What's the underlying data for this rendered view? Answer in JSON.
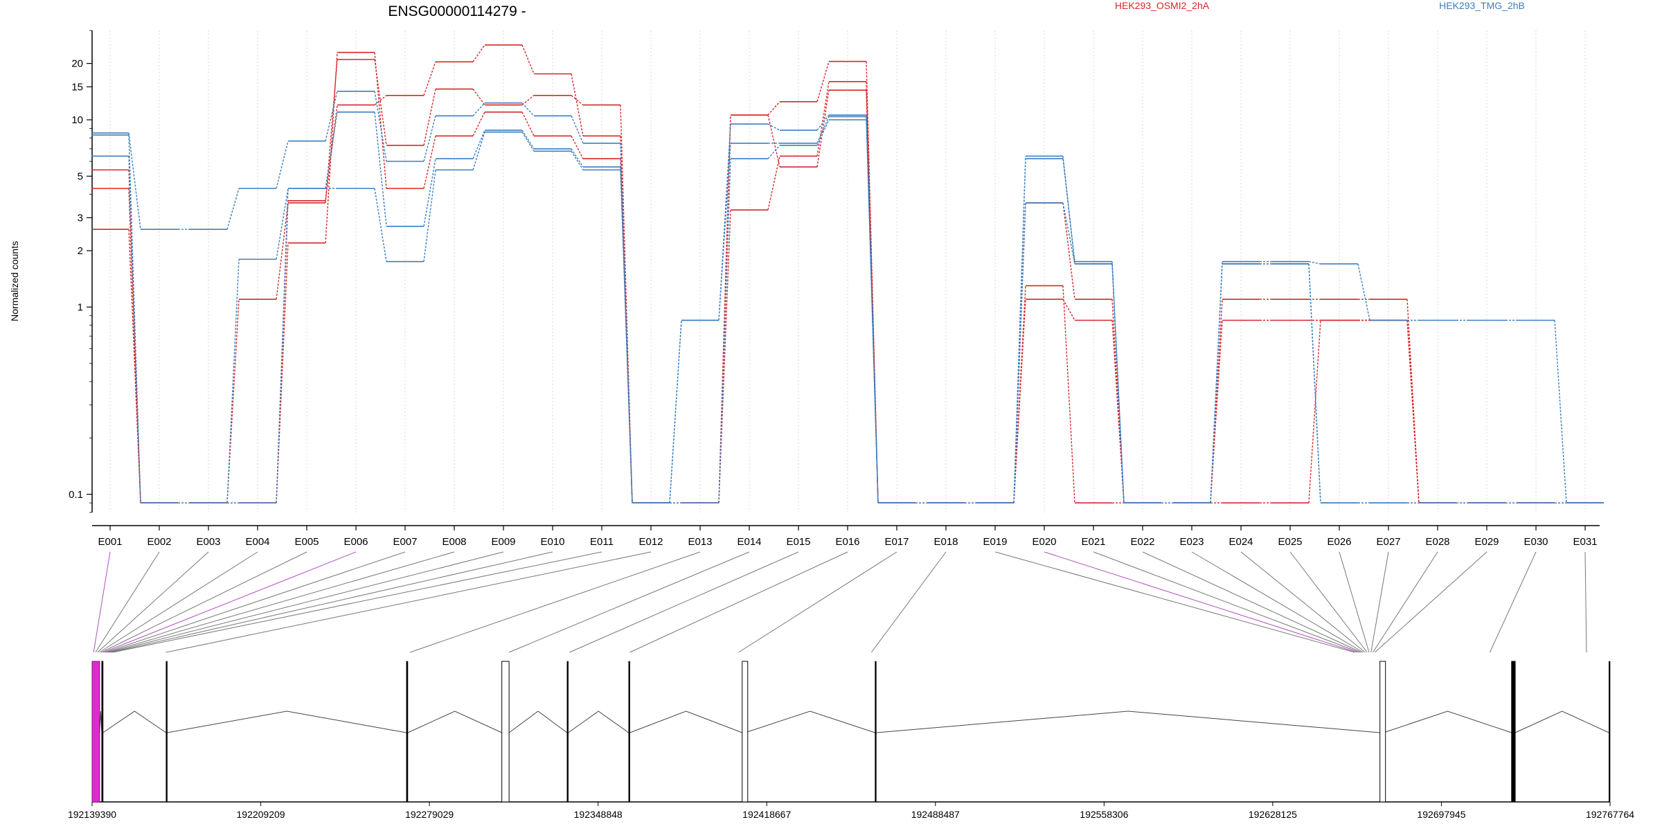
{
  "chart_data": {
    "type": "line",
    "title": "ENSG00000114279 -",
    "ylabel": "Normalized counts",
    "xlabel": "",
    "y_scale": "log",
    "ylim": [
      0.08,
      30
    ],
    "y_ticks": [
      {
        "value": 0.1,
        "label": "0.1"
      },
      {
        "value": 1,
        "label": "1"
      },
      {
        "value": 2,
        "label": "2"
      },
      {
        "value": 3,
        "label": "3"
      },
      {
        "value": 5,
        "label": "5"
      },
      {
        "value": 10,
        "label": "10"
      },
      {
        "value": 15,
        "label": "15"
      },
      {
        "value": 20,
        "label": "20"
      }
    ],
    "grid": "vertical dotted per exon",
    "categories": [
      "E001",
      "E002",
      "E003",
      "E004",
      "E005",
      "E006",
      "E007",
      "E008",
      "E009",
      "E010",
      "E011",
      "E012",
      "E013",
      "E014",
      "E015",
      "E016",
      "E017",
      "E018",
      "E019",
      "E020",
      "E021",
      "E022",
      "E023",
      "E024",
      "E025",
      "E026",
      "E027",
      "E028",
      "E029",
      "E030",
      "E031"
    ],
    "legend": [
      {
        "name": "HEK293_OSMI2_2hA",
        "color": "#d62728"
      },
      {
        "name": "HEK293_TMG_2hB",
        "color": "#3a7ebf"
      }
    ],
    "series": [
      {
        "group": "HEK293_OSMI2_2hA",
        "color": "#d62728",
        "values": [
          5.4,
          0.09,
          0.09,
          1.1,
          3.6,
          21.0,
          7.3,
          14.6,
          12.0,
          13.5,
          12.0,
          0.09,
          0.09,
          10.6,
          12.5,
          20.5,
          0.09,
          0.09,
          0.09,
          3.6,
          1.1,
          0.09,
          0.09,
          1.1,
          1.1,
          1.1,
          1.1,
          0.09,
          0.09,
          0.09,
          0.09
        ]
      },
      {
        "group": "HEK293_OSMI2_2hA",
        "color": "#d62728",
        "values": [
          4.3,
          0.09,
          0.09,
          0.09,
          3.7,
          12.0,
          13.5,
          20.4,
          25.1,
          17.6,
          8.2,
          0.09,
          0.09,
          3.3,
          6.4,
          16.0,
          0.09,
          0.09,
          0.09,
          1.3,
          0.09,
          0.09,
          0.09,
          0.85,
          0.85,
          0.85,
          0.85,
          0.09,
          0.09,
          0.09,
          0.09
        ]
      },
      {
        "group": "HEK293_OSMI2_2hA",
        "color": "#d62728",
        "values": [
          2.6,
          0.09,
          0.09,
          0.09,
          2.2,
          22.9,
          4.3,
          8.2,
          11.0,
          8.2,
          6.2,
          0.09,
          0.09,
          10.6,
          5.6,
          14.4,
          0.09,
          0.09,
          0.09,
          1.1,
          0.85,
          0.09,
          0.09,
          0.09,
          0.09,
          0.85,
          0.85,
          0.09,
          0.09,
          0.09,
          0.09
        ]
      },
      {
        "group": "HEK293_TMG_2hB",
        "color": "#3a7ebf",
        "values": [
          8.5,
          2.6,
          2.6,
          4.3,
          7.7,
          14.2,
          6.0,
          10.5,
          12.3,
          10.5,
          7.5,
          0.09,
          0.85,
          9.5,
          8.8,
          10.6,
          0.09,
          0.09,
          0.09,
          6.2,
          1.75,
          0.09,
          0.09,
          1.75,
          1.75,
          1.7,
          0.85,
          0.85,
          0.85,
          0.85,
          0.09
        ]
      },
      {
        "group": "HEK293_TMG_2hB",
        "color": "#3a7ebf",
        "values": [
          8.3,
          0.09,
          0.09,
          1.8,
          4.3,
          11.0,
          2.7,
          6.2,
          8.8,
          7.0,
          5.6,
          0.09,
          0.85,
          7.5,
          7.5,
          10.4,
          0.09,
          0.09,
          0.09,
          6.4,
          1.7,
          0.09,
          0.09,
          1.7,
          1.7,
          0.09,
          0.09,
          0.09,
          0.09,
          0.09,
          0.09
        ]
      },
      {
        "group": "HEK293_TMG_2hB",
        "color": "#3a7ebf",
        "values": [
          6.4,
          0.09,
          0.09,
          0.09,
          4.3,
          4.3,
          1.75,
          5.4,
          8.6,
          6.8,
          5.4,
          0.09,
          0.09,
          6.2,
          7.3,
          10.0,
          0.09,
          0.09,
          0.09,
          3.6,
          1.7,
          0.09,
          0.09,
          1.7,
          1.7,
          0.09,
          0.09,
          0.09,
          0.09,
          0.09,
          0.09
        ]
      }
    ],
    "gene_model": {
      "axis_ticks": [
        "192139390",
        "192209209",
        "192279029",
        "192348848",
        "192418667",
        "192488487",
        "192558306",
        "192628125",
        "192697945",
        "192767764"
      ],
      "exon_genomic_anchors": [
        192140000,
        192140800,
        192141600,
        192142400,
        192143200,
        192144000,
        192144800,
        192145600,
        192146400,
        192147200,
        192148000,
        192170000,
        192271000,
        192312000,
        192337000,
        192362000,
        192407000,
        192462000,
        192662000,
        192663000,
        192664000,
        192664800,
        192665600,
        192666400,
        192667200,
        192668000,
        192668800,
        192669600,
        192670400,
        192718000,
        192758000
      ],
      "highlighted_exons": [
        "E001",
        "E006",
        "E020"
      ],
      "exon_blocks": [
        {
          "start": 192139390,
          "end": 192142500,
          "style": "highlight"
        },
        {
          "start": 192143400,
          "end": 192143900,
          "style": "solid"
        },
        {
          "start": 192170000,
          "end": 192170500,
          "style": "thin"
        },
        {
          "start": 192269500,
          "end": 192270100,
          "style": "thin"
        },
        {
          "start": 192309000,
          "end": 192312000,
          "style": "open"
        },
        {
          "start": 192336000,
          "end": 192336500,
          "style": "thin"
        },
        {
          "start": 192361500,
          "end": 192362000,
          "style": "thin"
        },
        {
          "start": 192408500,
          "end": 192409700,
          "style": "open"
        },
        {
          "start": 192463500,
          "end": 192464000,
          "style": "thin"
        },
        {
          "start": 192672500,
          "end": 192674000,
          "style": "open"
        },
        {
          "start": 192727000,
          "end": 192728500,
          "style": "solid"
        },
        {
          "start": 192767300,
          "end": 192767764,
          "style": "thin"
        }
      ]
    }
  }
}
